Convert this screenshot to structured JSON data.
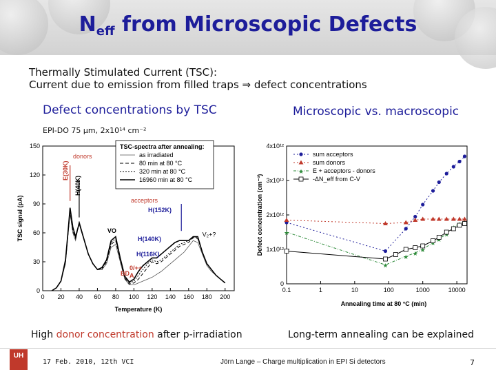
{
  "title": {
    "main": "N",
    "sub": "eff",
    "rest": " from Microscopic Defects"
  },
  "intro": {
    "line1": "Thermally Stimulated Current (TSC):",
    "line2": "Current due to emission from filled traps ⇒ defect concentrations"
  },
  "left_heading": "Defect concentrations by TSC",
  "right_heading": "Microscopic vs. macroscopic",
  "sample_label": "EPI-DO 75 µm, 2x10¹⁴ cm⁻²",
  "left_caption": {
    "pre": "High ",
    "colored": "donor concentration",
    "post": " after p-irradiation"
  },
  "right_caption": "Long-term annealing can be explained",
  "footer": {
    "logo": "UH",
    "date": "17 Feb. 2010, 12th VCI",
    "author": "Jörn Lange – Charge multiplication in EPI Si detectors",
    "page": "7"
  },
  "chart_data": [
    {
      "type": "line",
      "xlabel": "Temperature (K)",
      "ylabel": "TSC signal (pA)",
      "xlim": [
        0,
        210
      ],
      "ylim": [
        0,
        150
      ],
      "xticks": [
        "0",
        "20",
        "40",
        "60",
        "80",
        "100",
        "120",
        "140",
        "160",
        "180",
        "200"
      ],
      "yticks": [
        "0",
        "30",
        "60",
        "90",
        "120",
        "150"
      ],
      "legend_title": "TSC-spectra after annealing:",
      "legend": [
        "as irradiated",
        "80 min at 80 °C",
        "320 min at 80 °C",
        "16960 min at 80 °C"
      ],
      "annotations": [
        "donors",
        "acceptors",
        "E(30K)",
        "H(40K)",
        "VO",
        "H(152K)",
        "H(140K)",
        "H(116K)",
        "BD",
        "A",
        "0/++",
        "V₂+?"
      ],
      "series": [
        {
          "name": "as irradiated",
          "x": [
            10,
            15,
            20,
            25,
            28,
            30,
            33,
            36,
            40,
            45,
            50,
            55,
            60,
            65,
            70,
            75,
            80,
            85,
            90,
            95,
            100,
            105,
            110,
            115,
            120,
            125,
            130,
            135,
            140,
            145,
            150,
            155,
            160,
            165,
            170,
            175,
            180,
            185,
            190,
            195,
            200
          ],
          "values": [
            0,
            3,
            10,
            28,
            60,
            80,
            60,
            52,
            72,
            55,
            38,
            28,
            22,
            22,
            28,
            45,
            48,
            30,
            12,
            6,
            6,
            8,
            10,
            12,
            14,
            17,
            20,
            24,
            28,
            32,
            36,
            40,
            46,
            52,
            50,
            38,
            26,
            20,
            16,
            12,
            8
          ]
        },
        {
          "name": "80 min at 80 °C",
          "x": [
            10,
            15,
            20,
            25,
            28,
            30,
            33,
            36,
            40,
            45,
            50,
            55,
            60,
            65,
            70,
            75,
            80,
            85,
            90,
            95,
            100,
            105,
            110,
            115,
            120,
            125,
            130,
            135,
            140,
            145,
            150,
            155,
            160,
            165,
            170,
            175,
            180,
            185,
            190,
            195,
            200
          ],
          "values": [
            0,
            3,
            10,
            30,
            62,
            82,
            62,
            54,
            70,
            54,
            38,
            28,
            22,
            22,
            30,
            48,
            52,
            32,
            13,
            7,
            8,
            12,
            18,
            24,
            30,
            28,
            30,
            34,
            38,
            42,
            46,
            48,
            50,
            55,
            54,
            40,
            28,
            22,
            16,
            12,
            8
          ]
        },
        {
          "name": "320 min at 80 °C",
          "x": [
            10,
            15,
            20,
            25,
            28,
            30,
            33,
            36,
            40,
            45,
            50,
            55,
            60,
            65,
            70,
            75,
            80,
            85,
            90,
            95,
            100,
            105,
            110,
            115,
            120,
            125,
            130,
            135,
            140,
            145,
            150,
            155,
            160,
            165,
            170,
            175,
            180,
            185,
            190,
            195,
            200
          ],
          "values": [
            0,
            3,
            10,
            31,
            63,
            84,
            64,
            55,
            70,
            54,
            38,
            28,
            22,
            23,
            31,
            50,
            54,
            33,
            14,
            8,
            10,
            16,
            22,
            28,
            32,
            30,
            32,
            36,
            40,
            44,
            48,
            50,
            52,
            56,
            55,
            40,
            28,
            22,
            16,
            12,
            8
          ]
        },
        {
          "name": "16960 min at 80 °C",
          "x": [
            10,
            15,
            20,
            25,
            28,
            30,
            33,
            36,
            40,
            45,
            50,
            55,
            60,
            65,
            70,
            75,
            80,
            85,
            90,
            95,
            100,
            105,
            110,
            115,
            120,
            125,
            130,
            135,
            140,
            145,
            150,
            155,
            160,
            165,
            170,
            175,
            180,
            185,
            190,
            195,
            200
          ],
          "values": [
            0,
            3,
            10,
            32,
            64,
            86,
            66,
            56,
            70,
            54,
            38,
            28,
            22,
            24,
            32,
            52,
            56,
            34,
            15,
            9,
            12,
            20,
            26,
            30,
            34,
            34,
            38,
            42,
            46,
            50,
            52,
            52,
            52,
            56,
            56,
            40,
            28,
            22,
            16,
            12,
            8
          ]
        }
      ]
    },
    {
      "type": "scatter",
      "xlabel": "Annealing time at 80 °C (min)",
      "ylabel": "Defect concentration (cm⁻³)",
      "xscale": "log",
      "xlim": [
        0.1,
        20000
      ],
      "ylim": [
        0,
        4000000000000.0
      ],
      "xticks": [
        "0.1",
        "1",
        "10",
        "100",
        "1000",
        "10000"
      ],
      "yticks": [
        "0",
        "1x10¹²",
        "2x10¹²",
        "3x10¹²",
        "4x10¹²"
      ],
      "legend": [
        "sum acceptors",
        "sum donors",
        "E + acceptors - donors",
        "-ΔN_eff from C-V"
      ],
      "series": [
        {
          "name": "sum acceptors",
          "x": [
            0.1,
            80,
            320,
            600,
            1000,
            2000,
            3000,
            5000,
            8000,
            12000,
            16960
          ],
          "values": [
            1780000000000.0,
            950000000000.0,
            1600000000000.0,
            1950000000000.0,
            2300000000000.0,
            2700000000000.0,
            2950000000000.0,
            3200000000000.0,
            3400000000000.0,
            3550000000000.0,
            3700000000000.0
          ]
        },
        {
          "name": "sum donors",
          "x": [
            0.1,
            80,
            320,
            600,
            1000,
            2000,
            3000,
            5000,
            8000,
            12000,
            16960
          ],
          "values": [
            1850000000000.0,
            1750000000000.0,
            1780000000000.0,
            1850000000000.0,
            1880000000000.0,
            1880000000000.0,
            1880000000000.0,
            1880000000000.0,
            1880000000000.0,
            1880000000000.0,
            1880000000000.0
          ]
        },
        {
          "name": "E + acceptors - donors",
          "x": [
            0.1,
            80,
            320,
            600,
            1000,
            2000,
            3000,
            5000,
            8000,
            12000,
            16960
          ],
          "values": [
            1500000000000.0,
            550000000000.0,
            800000000000.0,
            900000000000.0,
            1000000000000.0,
            1200000000000.0,
            1300000000000.0,
            1450000000000.0,
            1650000000000.0,
            1750000000000.0,
            1800000000000.0
          ]
        },
        {
          "name": "-ΔN_eff from C-V",
          "x": [
            0.1,
            80,
            160,
            320,
            600,
            1000,
            2000,
            3000,
            5000,
            8000,
            12000,
            16960
          ],
          "values": [
            950000000000.0,
            720000000000.0,
            850000000000.0,
            1000000000000.0,
            1050000000000.0,
            1100000000000.0,
            1250000000000.0,
            1350000000000.0,
            1500000000000.0,
            1600000000000.0,
            1700000000000.0,
            1750000000000.0
          ]
        }
      ]
    }
  ]
}
